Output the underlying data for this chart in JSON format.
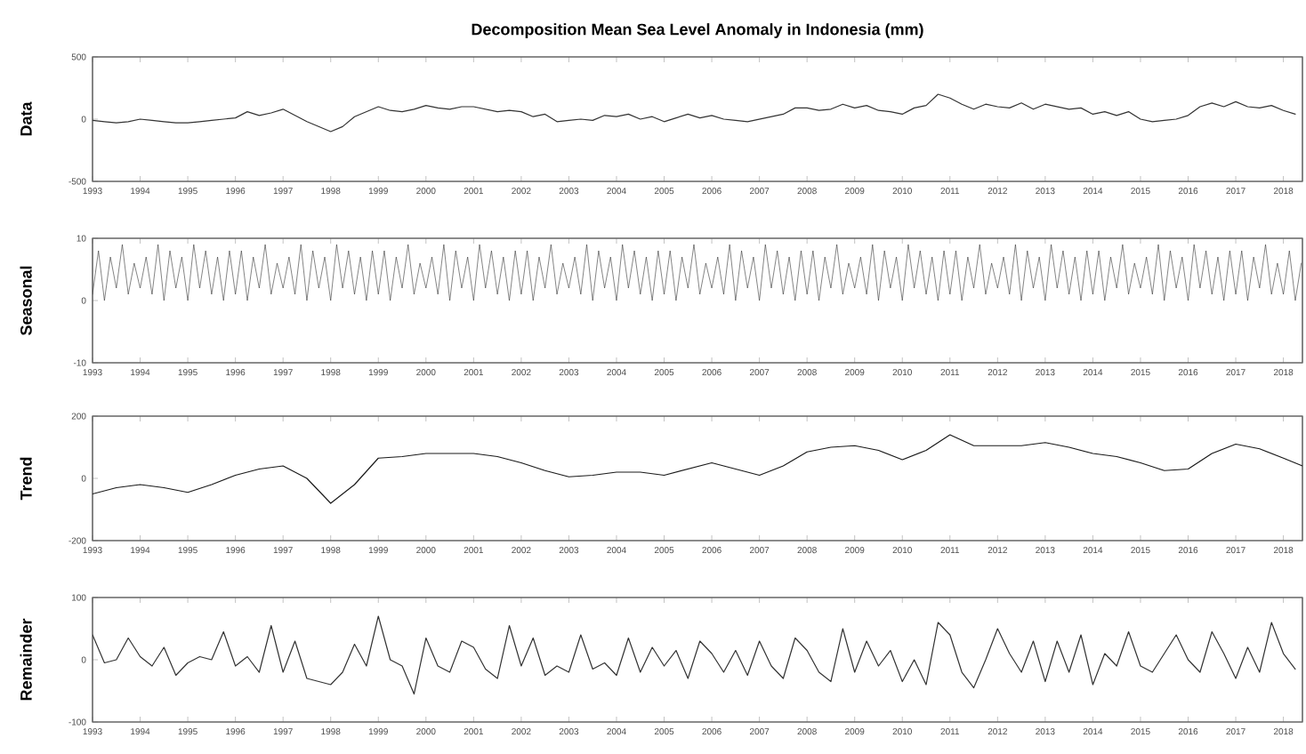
{
  "chart_data": [
    {
      "type": "line",
      "title": "Decomposition Mean Sea Level Anomaly in Indonesia (mm)",
      "ylabel": "Data",
      "color": "#333333",
      "xlim": [
        1993,
        2018.4
      ],
      "ylim": [
        -500,
        500
      ],
      "yticks": [
        -500,
        0,
        500
      ],
      "xticks": [
        1993,
        1994,
        1995,
        1996,
        1997,
        1998,
        1999,
        2000,
        2001,
        2002,
        2003,
        2004,
        2005,
        2006,
        2007,
        2008,
        2009,
        2010,
        2011,
        2012,
        2013,
        2014,
        2015,
        2016,
        2017,
        2018
      ],
      "x": [
        1993,
        1993.25,
        1993.5,
        1993.75,
        1994,
        1994.25,
        1994.5,
        1994.75,
        1995,
        1995.25,
        1995.5,
        1995.75,
        1996,
        1996.25,
        1996.5,
        1996.75,
        1997,
        1997.25,
        1997.5,
        1997.75,
        1998,
        1998.25,
        1998.5,
        1998.75,
        1999,
        1999.25,
        1999.5,
        1999.75,
        2000,
        2000.25,
        2000.5,
        2000.75,
        2001,
        2001.25,
        2001.5,
        2001.75,
        2002,
        2002.25,
        2002.5,
        2002.75,
        2003,
        2003.25,
        2003.5,
        2003.75,
        2004,
        2004.25,
        2004.5,
        2004.75,
        2005,
        2005.25,
        2005.5,
        2005.75,
        2006,
        2006.25,
        2006.5,
        2006.75,
        2007,
        2007.25,
        2007.5,
        2007.75,
        2008,
        2008.25,
        2008.5,
        2008.75,
        2009,
        2009.25,
        2009.5,
        2009.75,
        2010,
        2010.25,
        2010.5,
        2010.75,
        2011,
        2011.25,
        2011.5,
        2011.75,
        2012,
        2012.25,
        2012.5,
        2012.75,
        2013,
        2013.25,
        2013.5,
        2013.75,
        2014,
        2014.25,
        2014.5,
        2014.75,
        2015,
        2015.25,
        2015.5,
        2015.75,
        2016,
        2016.25,
        2016.5,
        2016.75,
        2017,
        2017.25,
        2017.5,
        2017.75,
        2018,
        2018.25
      ],
      "values": [
        -10,
        -20,
        -30,
        -20,
        0,
        -10,
        -20,
        -30,
        -30,
        -20,
        -10,
        0,
        10,
        60,
        30,
        50,
        80,
        30,
        -20,
        -60,
        -100,
        -60,
        20,
        60,
        100,
        70,
        60,
        80,
        110,
        90,
        80,
        100,
        100,
        80,
        60,
        70,
        60,
        20,
        40,
        -20,
        -10,
        0,
        -10,
        30,
        20,
        40,
        0,
        20,
        -20,
        10,
        40,
        10,
        30,
        0,
        -10,
        -20,
        0,
        20,
        40,
        90,
        90,
        70,
        80,
        120,
        90,
        110,
        70,
        60,
        40,
        90,
        110,
        200,
        170,
        120,
        80,
        120,
        100,
        90,
        130,
        80,
        120,
        100,
        80,
        90,
        40,
        60,
        30,
        60,
        0,
        -20,
        -10,
        0,
        30,
        100,
        130,
        100,
        140,
        100,
        90,
        110,
        70,
        40
      ]
    },
    {
      "type": "line",
      "ylabel": "Seasonal",
      "color": "#333333",
      "xlim": [
        1993,
        2018.4
      ],
      "ylim": [
        -10,
        10
      ],
      "yticks": [
        -10,
        0,
        10
      ],
      "xticks": [
        1993,
        1994,
        1995,
        1996,
        1997,
        1998,
        1999,
        2000,
        2001,
        2002,
        2003,
        2004,
        2005,
        2006,
        2007,
        2008,
        2009,
        2010,
        2011,
        2012,
        2013,
        2014,
        2015,
        2016,
        2017,
        2018
      ],
      "x": [
        1993,
        1993.125,
        1993.25,
        1993.375,
        1993.5,
        1993.625,
        1993.75,
        1993.875,
        1994,
        1994.125,
        1994.25,
        1994.375,
        1994.5,
        1994.625,
        1994.75,
        1994.875,
        1995,
        1995.125,
        1995.25,
        1995.375,
        1995.5,
        1995.625,
        1995.75,
        1995.875,
        1996,
        1996.125,
        1996.25,
        1996.375,
        1996.5,
        1996.625,
        1996.75,
        1996.875,
        1997,
        1997.125,
        1997.25,
        1997.375,
        1997.5,
        1997.625,
        1997.75,
        1997.875,
        1998,
        1998.125,
        1998.25,
        1998.375,
        1998.5,
        1998.625,
        1998.75,
        1998.875,
        1999,
        1999.125,
        1999.25,
        1999.375,
        1999.5,
        1999.625,
        1999.75,
        1999.875,
        2000,
        2000.125,
        2000.25,
        2000.375,
        2000.5,
        2000.625,
        2000.75,
        2000.875,
        2001,
        2001.125,
        2001.25,
        2001.375,
        2001.5,
        2001.625,
        2001.75,
        2001.875,
        2002,
        2002.125,
        2002.25,
        2002.375,
        2002.5,
        2002.625,
        2002.75,
        2002.875,
        2003,
        2003.125,
        2003.25,
        2003.375,
        2003.5,
        2003.625,
        2003.75,
        2003.875,
        2004,
        2004.125,
        2004.25,
        2004.375,
        2004.5,
        2004.625,
        2004.75,
        2004.875,
        2005,
        2005.125,
        2005.25,
        2005.375,
        2005.5,
        2005.625,
        2005.75,
        2005.875,
        2006,
        2006.125,
        2006.25,
        2006.375,
        2006.5,
        2006.625,
        2006.75,
        2006.875,
        2007,
        2007.125,
        2007.25,
        2007.375,
        2007.5,
        2007.625,
        2007.75,
        2007.875,
        2008,
        2008.125,
        2008.25,
        2008.375,
        2008.5,
        2008.625,
        2008.75,
        2008.875,
        2009,
        2009.125,
        2009.25,
        2009.375,
        2009.5,
        2009.625,
        2009.75,
        2009.875,
        2010,
        2010.125,
        2010.25,
        2010.375,
        2010.5,
        2010.625,
        2010.75,
        2010.875,
        2011,
        2011.125,
        2011.25,
        2011.375,
        2011.5,
        2011.625,
        2011.75,
        2011.875,
        2012,
        2012.125,
        2012.25,
        2012.375,
        2012.5,
        2012.625,
        2012.75,
        2012.875,
        2013,
        2013.125,
        2013.25,
        2013.375,
        2013.5,
        2013.625,
        2013.75,
        2013.875,
        2014,
        2014.125,
        2014.25,
        2014.375,
        2014.5,
        2014.625,
        2014.75,
        2014.875,
        2015,
        2015.125,
        2015.25,
        2015.375,
        2015.5,
        2015.625,
        2015.75,
        2015.875,
        2016,
        2016.125,
        2016.25,
        2016.375,
        2016.5,
        2016.625,
        2016.75,
        2016.875,
        2017,
        2017.125,
        2017.25,
        2017.375,
        2017.5,
        2017.625,
        2017.75,
        2017.875,
        2018,
        2018.125,
        2018.25,
        2018.375
      ],
      "values": [
        1,
        8,
        0,
        7,
        2,
        9,
        1,
        6,
        2,
        7,
        1,
        9,
        0,
        8,
        2,
        7,
        0,
        9,
        2,
        8,
        1,
        7,
        0,
        8,
        1,
        8,
        0,
        7,
        2,
        9,
        1,
        6,
        2,
        7,
        1,
        9,
        0,
        8,
        2,
        7,
        0,
        9,
        2,
        8,
        1,
        7,
        0,
        8,
        1,
        8,
        0,
        7,
        2,
        9,
        1,
        6,
        2,
        7,
        1,
        9,
        0,
        8,
        2,
        7,
        0,
        9,
        2,
        8,
        1,
        7,
        0,
        8,
        1,
        8,
        0,
        7,
        2,
        9,
        1,
        6,
        2,
        7,
        1,
        9,
        0,
        8,
        2,
        7,
        0,
        9,
        2,
        8,
        1,
        7,
        0,
        8,
        1,
        8,
        0,
        7,
        2,
        9,
        1,
        6,
        2,
        7,
        1,
        9,
        0,
        8,
        2,
        7,
        0,
        9,
        2,
        8,
        1,
        7,
        0,
        8,
        1,
        8,
        0,
        7,
        2,
        9,
        1,
        6,
        2,
        7,
        1,
        9,
        0,
        8,
        2,
        7,
        0,
        9,
        2,
        8,
        1,
        7,
        0,
        8,
        1,
        8,
        0,
        7,
        2,
        9,
        1,
        6,
        2,
        7,
        1,
        9,
        0,
        8,
        2,
        7,
        0,
        9,
        2,
        8,
        1,
        7,
        0,
        8,
        1,
        8,
        0,
        7,
        2,
        9,
        1,
        6,
        2,
        7,
        1,
        9,
        0,
        8,
        2,
        7,
        0,
        9,
        2,
        8,
        1,
        7,
        0,
        8,
        1,
        8,
        0,
        7,
        2,
        9,
        1,
        6,
        1,
        8,
        0,
        6
      ]
    },
    {
      "type": "line",
      "ylabel": "Trend",
      "color": "#1a1a1a",
      "xlim": [
        1993,
        2018.4
      ],
      "ylim": [
        -200,
        200
      ],
      "yticks": [
        -200,
        0,
        200
      ],
      "xticks": [
        1993,
        1994,
        1995,
        1996,
        1997,
        1998,
        1999,
        2000,
        2001,
        2002,
        2003,
        2004,
        2005,
        2006,
        2007,
        2008,
        2009,
        2010,
        2011,
        2012,
        2013,
        2014,
        2015,
        2016,
        2017,
        2018
      ],
      "x": [
        1993,
        1993.5,
        1994,
        1994.5,
        1995,
        1995.5,
        1996,
        1996.5,
        1997,
        1997.5,
        1998,
        1998.5,
        1999,
        1999.5,
        2000,
        2000.5,
        2001,
        2001.5,
        2002,
        2002.5,
        2003,
        2003.5,
        2004,
        2004.5,
        2005,
        2005.5,
        2006,
        2006.5,
        2007,
        2007.5,
        2008,
        2008.5,
        2009,
        2009.5,
        2010,
        2010.5,
        2011,
        2011.5,
        2012,
        2012.5,
        2013,
        2013.5,
        2014,
        2014.5,
        2015,
        2015.5,
        2016,
        2016.5,
        2017,
        2017.5,
        2018,
        2018.4
      ],
      "values": [
        -50,
        -30,
        -20,
        -30,
        -45,
        -20,
        10,
        30,
        40,
        0,
        -80,
        -20,
        65,
        70,
        80,
        80,
        80,
        70,
        50,
        25,
        5,
        10,
        20,
        20,
        10,
        30,
        50,
        30,
        10,
        40,
        85,
        100,
        105,
        90,
        60,
        90,
        140,
        105,
        105,
        105,
        115,
        100,
        80,
        70,
        50,
        25,
        30,
        80,
        110,
        95,
        65,
        40
      ]
    },
    {
      "type": "line",
      "ylabel": "Remainder",
      "color": "#333333",
      "xlim": [
        1993,
        2018.4
      ],
      "ylim": [
        -100,
        100
      ],
      "yticks": [
        -100,
        0,
        100
      ],
      "xticks": [
        1993,
        1994,
        1995,
        1996,
        1997,
        1998,
        1999,
        2000,
        2001,
        2002,
        2003,
        2004,
        2005,
        2006,
        2007,
        2008,
        2009,
        2010,
        2011,
        2012,
        2013,
        2014,
        2015,
        2016,
        2017,
        2018
      ],
      "x": [
        1993,
        1993.25,
        1993.5,
        1993.75,
        1994,
        1994.25,
        1994.5,
        1994.75,
        1995,
        1995.25,
        1995.5,
        1995.75,
        1996,
        1996.25,
        1996.5,
        1996.75,
        1997,
        1997.25,
        1997.5,
        1997.75,
        1998,
        1998.25,
        1998.5,
        1998.75,
        1999,
        1999.25,
        1999.5,
        1999.75,
        2000,
        2000.25,
        2000.5,
        2000.75,
        2001,
        2001.25,
        2001.5,
        2001.75,
        2002,
        2002.25,
        2002.5,
        2002.75,
        2003,
        2003.25,
        2003.5,
        2003.75,
        2004,
        2004.25,
        2004.5,
        2004.75,
        2005,
        2005.25,
        2005.5,
        2005.75,
        2006,
        2006.25,
        2006.5,
        2006.75,
        2007,
        2007.25,
        2007.5,
        2007.75,
        2008,
        2008.25,
        2008.5,
        2008.75,
        2009,
        2009.25,
        2009.5,
        2009.75,
        2010,
        2010.25,
        2010.5,
        2010.75,
        2011,
        2011.25,
        2011.5,
        2011.75,
        2012,
        2012.25,
        2012.5,
        2012.75,
        2013,
        2013.25,
        2013.5,
        2013.75,
        2014,
        2014.25,
        2014.5,
        2014.75,
        2015,
        2015.25,
        2015.5,
        2015.75,
        2016,
        2016.25,
        2016.5,
        2016.75,
        2017,
        2017.25,
        2017.5,
        2017.75,
        2018,
        2018.25
      ],
      "values": [
        40,
        -5,
        0,
        35,
        5,
        -10,
        20,
        -25,
        -5,
        5,
        0,
        45,
        -10,
        5,
        -20,
        55,
        -20,
        30,
        -30,
        -35,
        -40,
        -20,
        25,
        -10,
        70,
        0,
        -10,
        -55,
        35,
        -10,
        -20,
        30,
        20,
        -15,
        -30,
        55,
        -10,
        35,
        -25,
        -10,
        -20,
        40,
        -15,
        -5,
        -25,
        35,
        -20,
        20,
        -10,
        15,
        -30,
        30,
        10,
        -20,
        15,
        -25,
        30,
        -10,
        -30,
        35,
        15,
        -20,
        -35,
        50,
        -20,
        30,
        -10,
        15,
        -35,
        0,
        -40,
        60,
        40,
        -20,
        -45,
        0,
        50,
        10,
        -20,
        30,
        -35,
        30,
        -20,
        40,
        -40,
        10,
        -10,
        45,
        -10,
        -20,
        10,
        40,
        0,
        -20,
        45,
        10,
        -30,
        20,
        -20,
        60,
        10,
        -15
      ]
    }
  ]
}
